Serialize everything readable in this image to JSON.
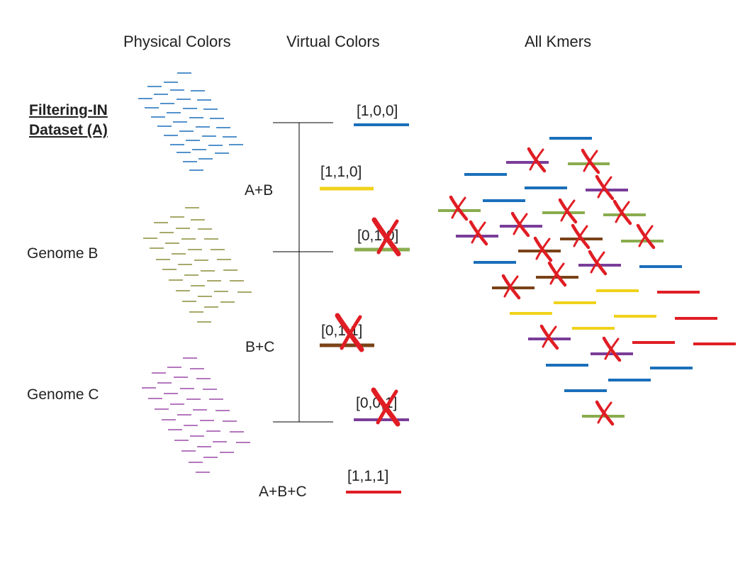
{
  "headers": {
    "physical": "Physical Colors",
    "virtual": "Virtual Colors",
    "all": "All Kmers"
  },
  "datasets": {
    "a_line1": "Filtering-IN",
    "a_line2": "Dataset (A)",
    "b": "Genome B",
    "c": "Genome C"
  },
  "groups": {
    "ab": "A+B",
    "bc": "B+C",
    "abc": "A+B+C"
  },
  "virtual_colors": [
    {
      "vector": "[1,0,0]",
      "color": "#1a6fba",
      "filtered": false
    },
    {
      "vector": "[1,1,0]",
      "color": "#f0d21a",
      "filtered": false
    },
    {
      "vector": "[0,1,0]",
      "color": "#8aac4e",
      "filtered": true
    },
    {
      "vector": "[0,1,1]",
      "color": "#7a4218",
      "filtered": true
    },
    {
      "vector": "[0,0,1]",
      "color": "#7a3d99",
      "filtered": true
    },
    {
      "vector": "[1,1,1]",
      "color": "#e01d24",
      "filtered": false
    }
  ],
  "colors": {
    "blue": "#1a6fba",
    "olive": "#8c8c3a",
    "purple": "#9b4aa8",
    "cross": "#e01d24"
  },
  "icons": [
    "cross-mark-icon"
  ]
}
